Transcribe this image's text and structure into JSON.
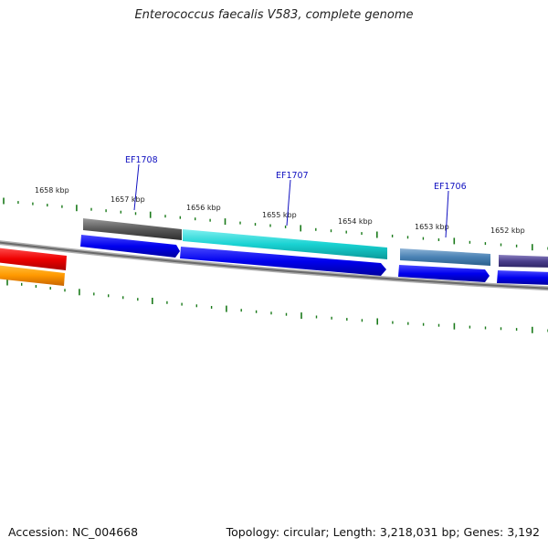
{
  "title": "Enterococcus faecalis V583, complete genome",
  "footer": {
    "accession": "Accession: NC_004668",
    "stats": "Topology: circular; Length: 3,218,031 bp; Genes: 3,192"
  },
  "colors": {
    "backbone": "#808080",
    "tick": "#1a7a1a",
    "gene_label": "#1010c0",
    "forward_arrow": "#0000ee"
  },
  "kbp_labels": [
    "1658 kbp",
    "1657 kbp",
    "1656 kbp",
    "1655 kbp",
    "1654 kbp",
    "1653 kbp",
    "1652 kbp"
  ],
  "gene_labels": [
    "EF1708",
    "EF1707",
    "EF1706"
  ]
}
